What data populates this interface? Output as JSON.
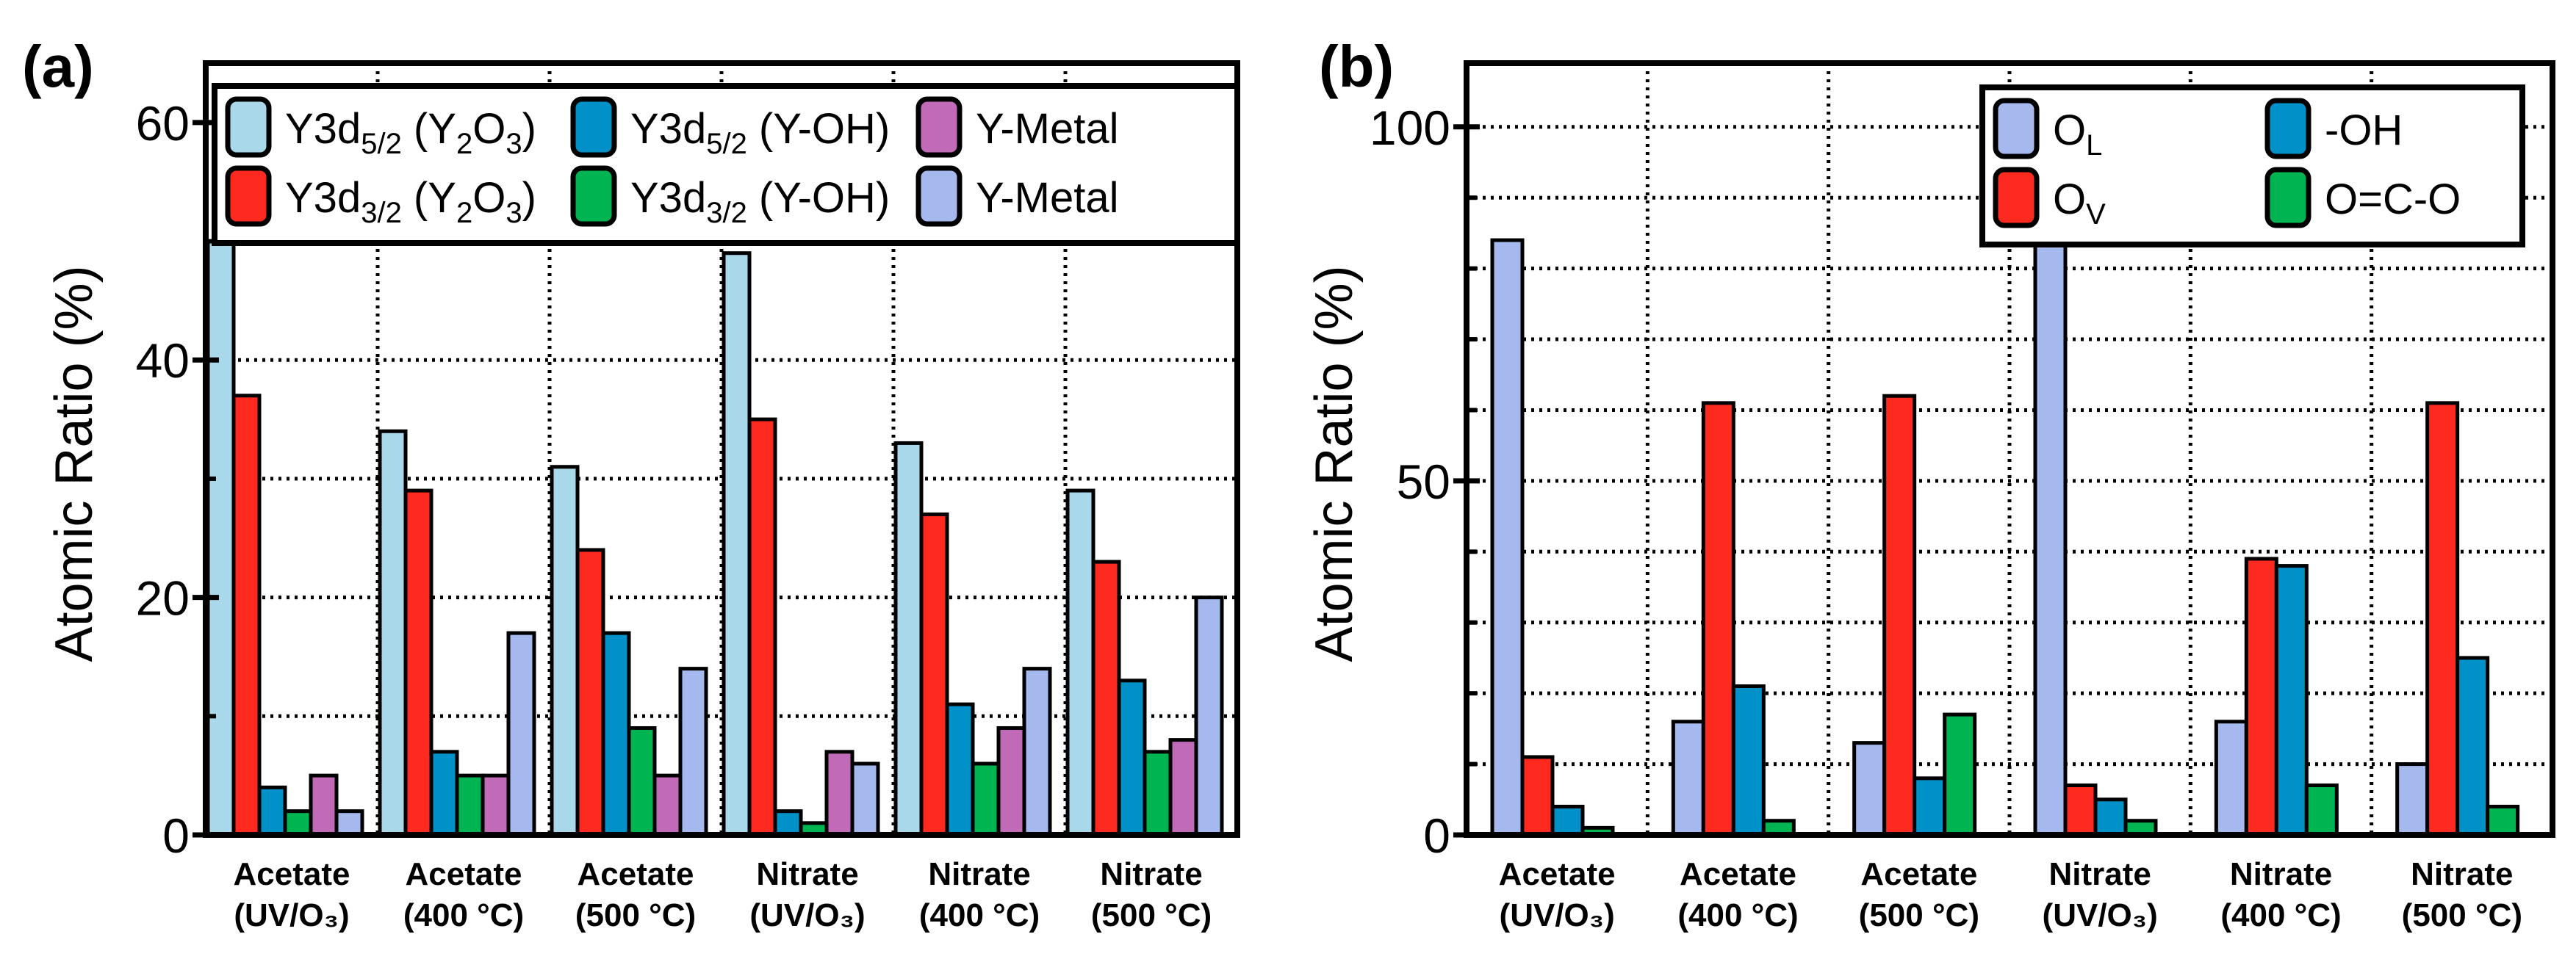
{
  "chart_data": [
    {
      "type": "bar",
      "panel_label": "(a)",
      "ylabel": "Atomic Ratio (%)",
      "ylim": [
        0,
        65
      ],
      "yticks": [
        0,
        20,
        40,
        60
      ],
      "minor_yticks": [
        10,
        30,
        50
      ],
      "grid": true,
      "legend_position": "top",
      "categories": [
        [
          "Acetate",
          "(UV/O₃)"
        ],
        [
          "Acetate",
          "(400 °C)"
        ],
        [
          "Acetate",
          "(500 °C)"
        ],
        [
          "Nitrate",
          "(UV/O₃)"
        ],
        [
          "Nitrate",
          "(400 °C)"
        ],
        [
          "Nitrate",
          "(500 °C)"
        ]
      ],
      "series": [
        {
          "name": "Y3d5/2 (Y2O3)",
          "label": [
            [
              "Y3d",
              ""
            ],
            [
              "5/2",
              "sub"
            ],
            [
              " (Y",
              ""
            ],
            [
              "2",
              "sub"
            ],
            [
              "O",
              ""
            ],
            [
              "3",
              "sub"
            ],
            [
              ")",
              ""
            ]
          ],
          "color": "#a8d8ea",
          "values": [
            50,
            34,
            31,
            49,
            33,
            29
          ]
        },
        {
          "name": "Y3d3/2 (Y2O3)",
          "label": [
            [
              "Y3d",
              ""
            ],
            [
              "3/2",
              "sub"
            ],
            [
              " (Y",
              ""
            ],
            [
              "2",
              "sub"
            ],
            [
              "O",
              ""
            ],
            [
              "3",
              "sub"
            ],
            [
              ")",
              ""
            ]
          ],
          "color": "#ff2a1f",
          "values": [
            37,
            29,
            24,
            35,
            27,
            23
          ]
        },
        {
          "name": "Y3d5/2 (Y-OH)",
          "label": [
            [
              "Y3d",
              ""
            ],
            [
              "5/2",
              "sub"
            ],
            [
              " (Y-OH)",
              ""
            ]
          ],
          "color": "#0091c9",
          "values": [
            4,
            7,
            17,
            2,
            11,
            13
          ]
        },
        {
          "name": "Y3d3/2 (Y-OH)",
          "label": [
            [
              "Y3d",
              ""
            ],
            [
              "3/2",
              "sub"
            ],
            [
              " (Y-OH)",
              ""
            ]
          ],
          "color": "#00b551",
          "values": [
            2,
            5,
            9,
            1,
            6,
            7
          ]
        },
        {
          "name": "Y-Metal",
          "label": [
            [
              "Y-Metal",
              ""
            ]
          ],
          "color": "#c06ab8",
          "values": [
            5,
            5,
            5,
            7,
            9,
            8
          ]
        },
        {
          "name": "Y-Metal",
          "label": [
            [
              "Y-Metal",
              ""
            ]
          ],
          "color": "#a6b9ee",
          "values": [
            2,
            17,
            14,
            6,
            14,
            20
          ]
        }
      ]
    },
    {
      "type": "bar",
      "panel_label": "(b)",
      "ylabel": "Atomic Ratio (%)",
      "ylim": [
        0,
        109
      ],
      "yticks": [
        0,
        50,
        100
      ],
      "minor_yticks": [
        10,
        20,
        30,
        40,
        60,
        70,
        80,
        90
      ],
      "grid": true,
      "legend_position": "top-right",
      "categories": [
        [
          "Acetate",
          "(UV/O₃)"
        ],
        [
          "Acetate",
          "(400 °C)"
        ],
        [
          "Acetate",
          "(500 °C)"
        ],
        [
          "Nitrate",
          "(UV/O₃)"
        ],
        [
          "Nitrate",
          "(400 °C)"
        ],
        [
          "Nitrate",
          "(500 °C)"
        ]
      ],
      "series": [
        {
          "name": "OL",
          "label": [
            [
              "O",
              ""
            ],
            [
              "L",
              "sub"
            ]
          ],
          "color": "#a6b9ee",
          "values": [
            84,
            16,
            13,
            86,
            16,
            10
          ]
        },
        {
          "name": "OV",
          "label": [
            [
              "O",
              ""
            ],
            [
              "V",
              "sub"
            ]
          ],
          "color": "#ff2a1f",
          "values": [
            11,
            61,
            62,
            7,
            39,
            61
          ]
        },
        {
          "name": "-OH",
          "label": [
            [
              "-OH",
              ""
            ]
          ],
          "color": "#0091c9",
          "values": [
            4,
            21,
            8,
            5,
            38,
            25
          ]
        },
        {
          "name": "O=C-O",
          "label": [
            [
              "O=C-O",
              ""
            ]
          ],
          "color": "#00b551",
          "values": [
            1,
            2,
            17,
            2,
            7,
            4
          ]
        }
      ]
    }
  ]
}
